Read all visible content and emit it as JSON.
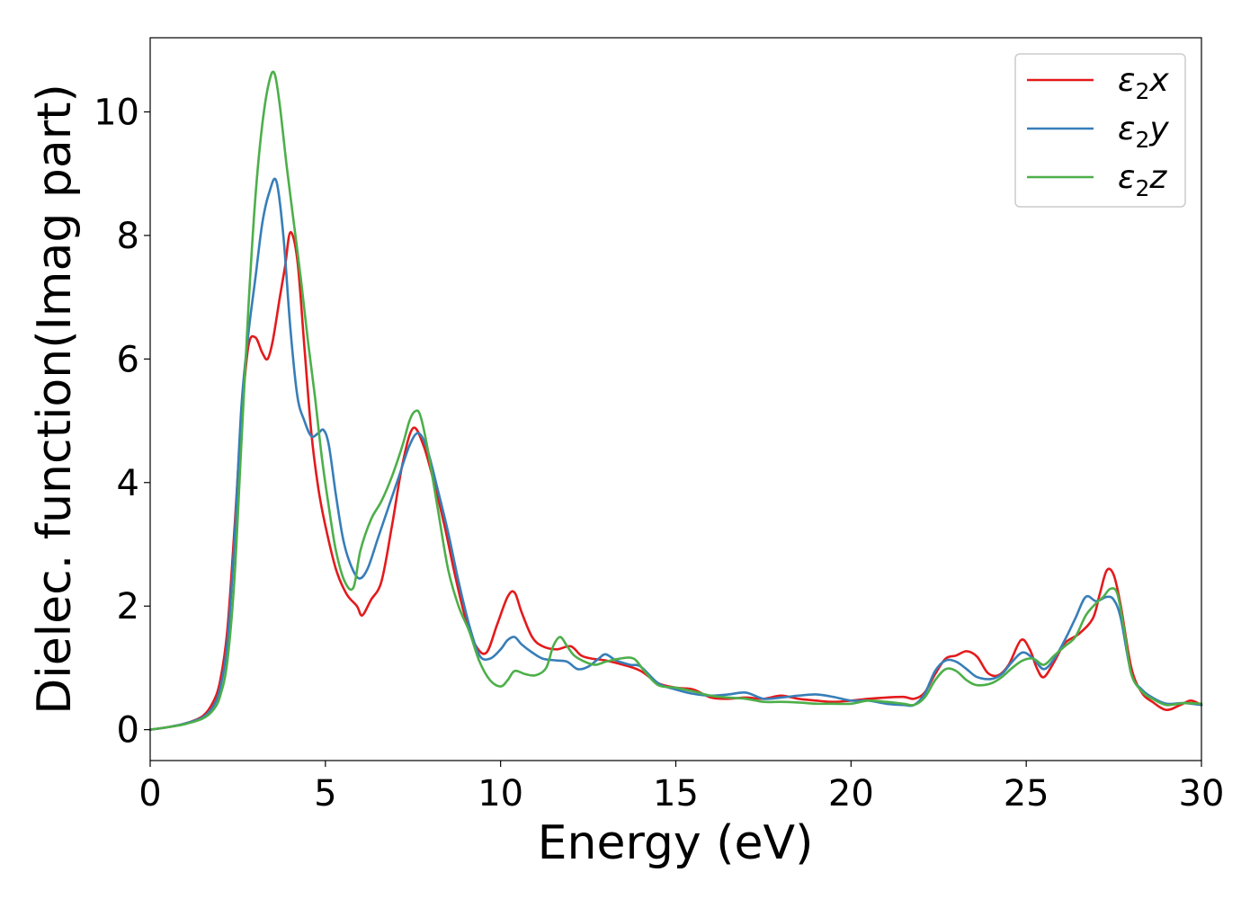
{
  "chart_data": {
    "type": "line",
    "title": "",
    "xlabel": "Energy (eV)",
    "ylabel": "Dielec. function(Imag part)",
    "xlim": [
      0,
      30
    ],
    "ylim": [
      -0.5,
      11.2
    ],
    "xticks": [
      "0",
      "5",
      "10",
      "15",
      "20",
      "25",
      "30"
    ],
    "yticks": [
      "0",
      "2",
      "4",
      "6",
      "8",
      "10"
    ],
    "grid": false,
    "legend_position": "top-right",
    "series": [
      {
        "name": "ε₂x",
        "legend_main": "ε",
        "legend_sub": "2",
        "legend_tail": "x",
        "color": "#e41a1c",
        "x": [
          0,
          0.5,
          1.0,
          1.5,
          1.8,
          2.0,
          2.2,
          2.4,
          2.6,
          2.8,
          3.0,
          3.2,
          3.35,
          3.5,
          3.7,
          3.85,
          4.0,
          4.2,
          4.4,
          4.6,
          4.8,
          5.0,
          5.3,
          5.6,
          5.9,
          6.05,
          6.3,
          6.6,
          6.9,
          7.2,
          7.5,
          7.8,
          8.1,
          8.4,
          8.7,
          9.0,
          9.3,
          9.6,
          9.9,
          10.2,
          10.4,
          10.6,
          10.9,
          11.2,
          11.6,
          12.0,
          12.3,
          12.6,
          13.0,
          13.5,
          14.0,
          14.5,
          15.0,
          15.5,
          16.0,
          16.5,
          17.0,
          17.5,
          18.0,
          18.5,
          19.0,
          19.5,
          20.0,
          20.5,
          21.0,
          21.5,
          21.8,
          22.1,
          22.4,
          22.7,
          23.0,
          23.3,
          23.6,
          23.9,
          24.2,
          24.5,
          24.85,
          25.1,
          25.3,
          25.5,
          25.8,
          26.1,
          26.5,
          26.9,
          27.1,
          27.3,
          27.5,
          27.7,
          28.0,
          28.3,
          28.6,
          29.0,
          29.4,
          29.7,
          30.0
        ],
        "y": [
          0,
          0.04,
          0.1,
          0.22,
          0.45,
          0.8,
          1.6,
          3.2,
          5.0,
          6.2,
          6.35,
          6.1,
          6.0,
          6.3,
          7.0,
          7.5,
          8.05,
          7.6,
          6.2,
          4.8,
          3.9,
          3.3,
          2.6,
          2.2,
          2.0,
          1.85,
          2.1,
          2.4,
          3.3,
          4.3,
          4.88,
          4.6,
          4.0,
          3.3,
          2.5,
          1.8,
          1.35,
          1.25,
          1.7,
          2.15,
          2.22,
          1.9,
          1.5,
          1.35,
          1.3,
          1.35,
          1.2,
          1.15,
          1.12,
          1.05,
          0.95,
          0.75,
          0.68,
          0.65,
          0.52,
          0.5,
          0.52,
          0.5,
          0.55,
          0.5,
          0.47,
          0.45,
          0.47,
          0.5,
          0.52,
          0.53,
          0.5,
          0.6,
          0.9,
          1.15,
          1.2,
          1.27,
          1.18,
          0.92,
          0.88,
          1.05,
          1.45,
          1.3,
          1.0,
          0.85,
          1.1,
          1.4,
          1.55,
          1.8,
          2.2,
          2.58,
          2.5,
          2.0,
          1.0,
          0.6,
          0.45,
          0.32,
          0.4,
          0.47,
          0.4
        ]
      },
      {
        "name": "ε₂y",
        "legend_main": "ε",
        "legend_sub": "2",
        "legend_tail": "y",
        "color": "#377eb8",
        "x": [
          0,
          0.5,
          1.0,
          1.5,
          1.8,
          2.0,
          2.2,
          2.4,
          2.6,
          2.8,
          3.0,
          3.2,
          3.4,
          3.6,
          3.8,
          4.0,
          4.2,
          4.4,
          4.6,
          4.8,
          4.95,
          5.1,
          5.3,
          5.5,
          5.7,
          5.95,
          6.2,
          6.5,
          6.8,
          7.1,
          7.4,
          7.65,
          7.9,
          8.2,
          8.5,
          8.8,
          9.1,
          9.4,
          9.7,
          10.0,
          10.2,
          10.4,
          10.6,
          10.9,
          11.2,
          11.6,
          11.9,
          12.2,
          12.5,
          12.8,
          13.0,
          13.3,
          13.7,
          14.0,
          14.5,
          15.0,
          15.5,
          16.0,
          16.5,
          17.0,
          17.5,
          18.0,
          18.5,
          19.0,
          19.5,
          20.0,
          20.5,
          21.0,
          21.5,
          21.8,
          22.1,
          22.4,
          22.7,
          23.0,
          23.3,
          23.6,
          24.0,
          24.3,
          24.6,
          24.9,
          25.2,
          25.5,
          25.8,
          26.1,
          26.4,
          26.7,
          27.0,
          27.3,
          27.5,
          27.7,
          28.0,
          28.3,
          28.6,
          29.0,
          29.5,
          30.0
        ],
        "y": [
          0,
          0.04,
          0.1,
          0.2,
          0.38,
          0.68,
          1.4,
          3.0,
          5.2,
          6.4,
          7.3,
          8.2,
          8.7,
          8.88,
          8.0,
          6.5,
          5.4,
          5.0,
          4.75,
          4.8,
          4.85,
          4.6,
          3.8,
          3.1,
          2.7,
          2.45,
          2.6,
          3.1,
          3.6,
          4.1,
          4.6,
          4.8,
          4.55,
          3.9,
          3.2,
          2.4,
          1.7,
          1.2,
          1.15,
          1.3,
          1.45,
          1.5,
          1.38,
          1.25,
          1.15,
          1.12,
          1.1,
          0.98,
          1.02,
          1.15,
          1.22,
          1.12,
          1.05,
          1.02,
          0.75,
          0.65,
          0.58,
          0.55,
          0.57,
          0.6,
          0.5,
          0.52,
          0.55,
          0.57,
          0.53,
          0.47,
          0.47,
          0.42,
          0.4,
          0.4,
          0.58,
          0.95,
          1.12,
          1.1,
          0.98,
          0.85,
          0.82,
          0.9,
          1.1,
          1.25,
          1.15,
          0.98,
          1.15,
          1.45,
          1.8,
          2.15,
          2.08,
          2.15,
          2.1,
          1.8,
          0.9,
          0.65,
          0.52,
          0.42,
          0.43,
          0.4
        ]
      },
      {
        "name": "ε₂z",
        "legend_main": "ε",
        "legend_sub": "2",
        "legend_tail": "z",
        "color": "#4daf4a",
        "x": [
          0,
          0.5,
          1.0,
          1.5,
          1.8,
          2.0,
          2.2,
          2.4,
          2.6,
          2.8,
          3.0,
          3.2,
          3.4,
          3.55,
          3.7,
          3.9,
          4.1,
          4.3,
          4.5,
          4.7,
          4.9,
          5.1,
          5.3,
          5.55,
          5.8,
          6.0,
          6.3,
          6.6,
          6.9,
          7.2,
          7.4,
          7.55,
          7.7,
          7.9,
          8.2,
          8.5,
          8.8,
          9.1,
          9.4,
          9.7,
          10.0,
          10.2,
          10.4,
          10.7,
          11.0,
          11.3,
          11.5,
          11.7,
          11.9,
          12.1,
          12.4,
          12.7,
          13.0,
          13.4,
          13.8,
          14.1,
          14.5,
          15.0,
          15.5,
          16.0,
          16.5,
          17.0,
          17.5,
          18.0,
          18.5,
          19.0,
          19.5,
          20.0,
          20.5,
          21.0,
          21.5,
          21.8,
          22.1,
          22.4,
          22.7,
          23.0,
          23.3,
          23.6,
          24.0,
          24.3,
          24.6,
          24.9,
          25.2,
          25.5,
          25.8,
          26.1,
          26.4,
          26.7,
          27.0,
          27.2,
          27.4,
          27.6,
          27.8,
          28.0,
          28.3,
          28.6,
          29.0,
          29.5,
          30.0
        ],
        "y": [
          0,
          0.04,
          0.09,
          0.18,
          0.32,
          0.55,
          1.1,
          2.4,
          4.6,
          6.8,
          8.6,
          9.8,
          10.5,
          10.62,
          10.1,
          9.1,
          8.2,
          7.3,
          6.3,
          5.4,
          4.4,
          3.6,
          2.9,
          2.4,
          2.3,
          2.9,
          3.4,
          3.7,
          4.1,
          4.6,
          5.0,
          5.15,
          5.1,
          4.6,
          3.6,
          2.6,
          2.0,
          1.6,
          1.1,
          0.8,
          0.7,
          0.8,
          0.95,
          0.9,
          0.88,
          1.0,
          1.35,
          1.5,
          1.35,
          1.2,
          1.1,
          1.05,
          1.1,
          1.15,
          1.15,
          0.95,
          0.72,
          0.68,
          0.62,
          0.55,
          0.52,
          0.5,
          0.45,
          0.45,
          0.44,
          0.42,
          0.42,
          0.42,
          0.47,
          0.45,
          0.42,
          0.4,
          0.52,
          0.8,
          0.98,
          0.95,
          0.8,
          0.72,
          0.75,
          0.85,
          1.0,
          1.12,
          1.15,
          1.05,
          1.2,
          1.35,
          1.5,
          1.85,
          2.05,
          2.15,
          2.28,
          2.2,
          1.6,
          0.9,
          0.62,
          0.5,
          0.4,
          0.43,
          0.42
        ]
      }
    ]
  }
}
